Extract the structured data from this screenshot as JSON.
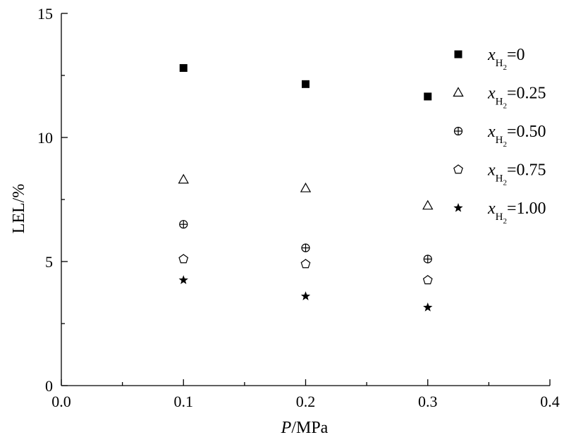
{
  "chart_data": {
    "type": "scatter",
    "xlabel_italic": "P",
    "xlabel_rest": "/MPa",
    "ylabel": "LEL/%",
    "xlim": [
      0.0,
      0.4
    ],
    "ylim": [
      0,
      15
    ],
    "xticks": [
      "0.0",
      "0.1",
      "0.2",
      "0.3",
      "0.4"
    ],
    "yticks": [
      "0",
      "5",
      "10",
      "15"
    ],
    "x": [
      0.1,
      0.2,
      0.3
    ],
    "legend_position": "top-right",
    "grid": false,
    "series": [
      {
        "legend_var": "x",
        "legend_sub": "H",
        "legend_subsub": "2",
        "legend_value": "=0",
        "marker": "filled-square",
        "values": [
          12.8,
          12.15,
          11.65
        ]
      },
      {
        "legend_var": "x",
        "legend_sub": "H",
        "legend_subsub": "2",
        "legend_value": "=0.25",
        "marker": "open-triangle",
        "values": [
          8.3,
          7.95,
          7.25
        ]
      },
      {
        "legend_var": "x",
        "legend_sub": "H",
        "legend_subsub": "2",
        "legend_value": "=0.50",
        "marker": "circle-plus",
        "values": [
          6.5,
          5.55,
          5.1
        ]
      },
      {
        "legend_var": "x",
        "legend_sub": "H",
        "legend_subsub": "2",
        "legend_value": "=0.75",
        "marker": "open-pentagon",
        "values": [
          5.1,
          4.9,
          4.25
        ]
      },
      {
        "legend_var": "x",
        "legend_sub": "H",
        "legend_subsub": "2",
        "legend_value": "=1.00",
        "marker": "filled-star",
        "values": [
          4.25,
          3.6,
          3.15
        ]
      }
    ]
  }
}
